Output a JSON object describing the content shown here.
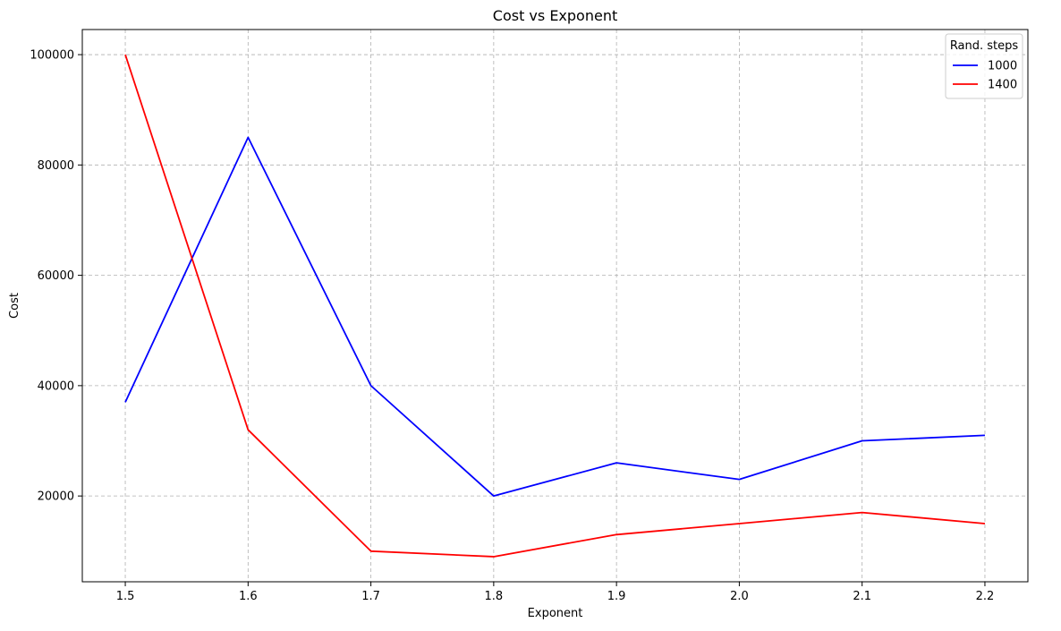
{
  "chart_data": {
    "type": "line",
    "title": "Cost vs Exponent",
    "xlabel": "Exponent",
    "ylabel": "Cost",
    "x": [
      1.5,
      1.6,
      1.7,
      1.8,
      1.9,
      2.0,
      2.1,
      2.2
    ],
    "x_tick_labels": [
      "1.5",
      "1.6",
      "1.7",
      "1.8",
      "1.9",
      "2.0",
      "2.1",
      "2.2"
    ],
    "y_ticks": [
      20000,
      40000,
      60000,
      80000,
      100000
    ],
    "y_tick_labels": [
      "20000",
      "40000",
      "60000",
      "80000",
      "100000"
    ],
    "xlim": [
      1.465,
      2.235
    ],
    "ylim": [
      4450,
      104550
    ],
    "grid": true,
    "grid_style": "dashed",
    "legend": {
      "title": "Rand. steps",
      "placement": "top-right"
    },
    "series": [
      {
        "name": "1000",
        "color": "#0000ff",
        "values": [
          37000,
          85000,
          40000,
          20000,
          26000,
          23000,
          30000,
          31000
        ]
      },
      {
        "name": "1400",
        "color": "#ff0000",
        "values": [
          100000,
          32000,
          10000,
          9000,
          13000,
          15000,
          17000,
          15000
        ]
      }
    ]
  }
}
